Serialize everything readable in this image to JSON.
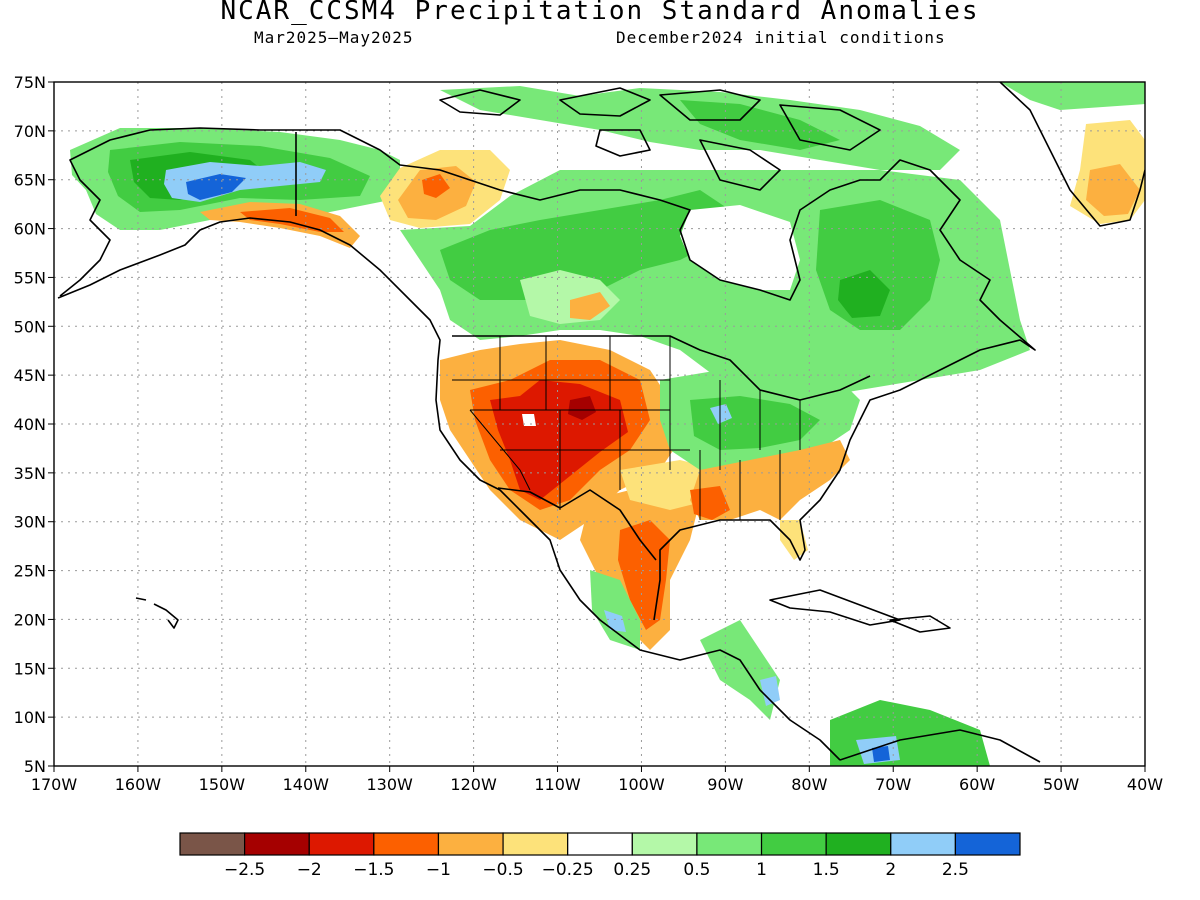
{
  "title": "NCAR_CCSM4 Precipitation Standard Anomalies",
  "subtitle_left": "Mar2025–May2025",
  "subtitle_right": "December2024 initial conditions",
  "map": {
    "lon_range": [
      -170,
      -40
    ],
    "lat_range": [
      5,
      75
    ],
    "lon_ticks": [
      "170W",
      "160W",
      "150W",
      "140W",
      "130W",
      "120W",
      "110W",
      "100W",
      "90W",
      "80W",
      "70W",
      "60W",
      "50W",
      "40W"
    ],
    "lat_ticks": [
      "5N",
      "10N",
      "15N",
      "20N",
      "25N",
      "30N",
      "35N",
      "40N",
      "45N",
      "50N",
      "55N",
      "60N",
      "65N",
      "70N",
      "75N"
    ],
    "grid": "dotted",
    "colors": {
      "land_outline": "#000000",
      "grid": "#9a9a9a"
    },
    "anomaly_regions": [
      {
        "name": "alaska-wet",
        "level": 1.5
      },
      {
        "name": "alaska-core-wet",
        "level": 2.5
      },
      {
        "name": "yukon-dry",
        "level": -1
      },
      {
        "name": "canada-wet",
        "level": 1
      },
      {
        "name": "southwest-dry",
        "level": -1.5
      },
      {
        "name": "ohio-valley-wet",
        "level": 1
      },
      {
        "name": "southeast-dry",
        "level": -0.5
      },
      {
        "name": "texas-dry",
        "level": -1
      },
      {
        "name": "quebec-wet",
        "level": 1.5
      },
      {
        "name": "greenland-dry",
        "level": -0.5
      },
      {
        "name": "colombia-wet",
        "level": 1.5
      }
    ]
  },
  "colorbar": {
    "colors": [
      "#7a5548",
      "#a50000",
      "#dd1800",
      "#fc6000",
      "#fcb040",
      "#fde27a",
      "#ffffff",
      "#b4f8a8",
      "#78e878",
      "#42cc42",
      "#20b020",
      "#90cdf8",
      "#1464d8"
    ],
    "labels": [
      "−2.5",
      "−2",
      "−1.5",
      "−1",
      "−0.5",
      "−0.25",
      "0.25",
      "0.5",
      "1",
      "1.5",
      "2",
      "2.5"
    ]
  }
}
